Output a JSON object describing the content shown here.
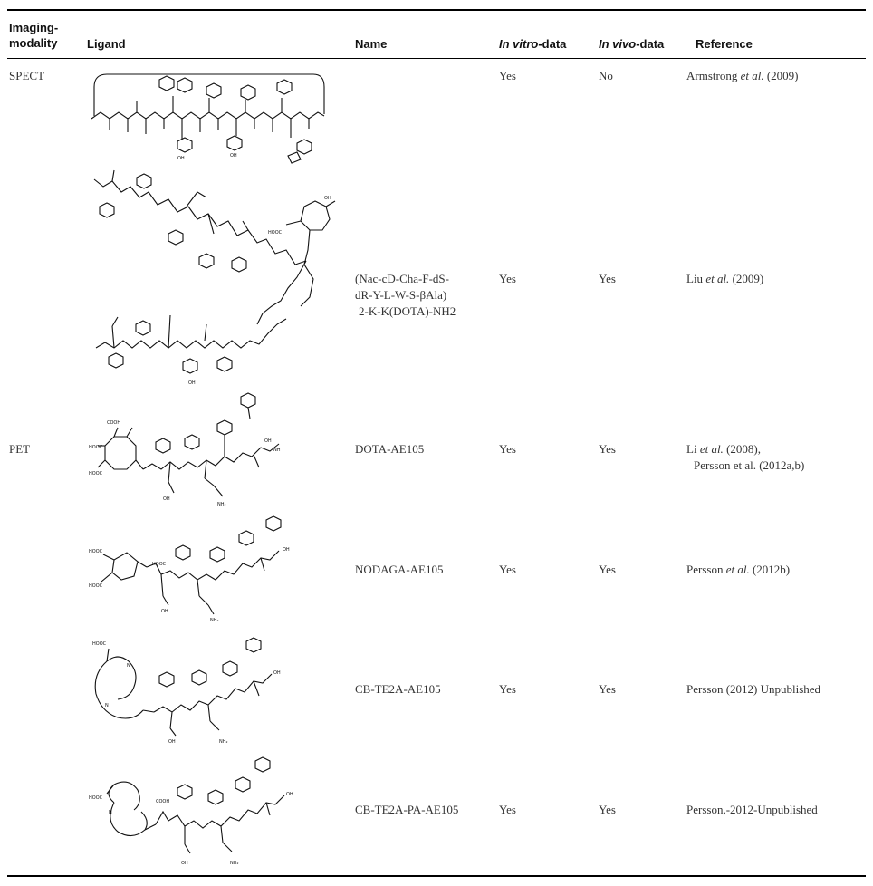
{
  "table": {
    "headers": {
      "modality_line1": "Imaging-",
      "modality_line2": "modality",
      "ligand": "Ligand",
      "name": "Name",
      "invitro_italic": "In vitro",
      "invitro_suffix": "-data",
      "invivo_italic": "In vivo",
      "invivo_suffix": "-data",
      "reference": "Reference"
    },
    "rows": [
      {
        "modality": "SPECT",
        "name_lines": [],
        "in_vitro": "Yes",
        "in_vivo": "No",
        "ref_a": "Armstrong ",
        "ref_b": "et al.",
        "ref_c": " (2009)",
        "ref_line2": ""
      },
      {
        "modality": "",
        "name_lines": [
          "(Nac-cD-Cha-F-dS-",
          "dR-Y-L-W-S-βAla)",
          "2-K-K(DOTA)-NH2"
        ],
        "in_vitro": "Yes",
        "in_vivo": "Yes",
        "ref_a": "Liu ",
        "ref_b": "et al.",
        "ref_c": " (2009)",
        "ref_line2": ""
      },
      {
        "modality": "PET",
        "name_lines": [
          "DOTA-AE105"
        ],
        "in_vitro": "Yes",
        "in_vivo": "Yes",
        "ref_a": "Li ",
        "ref_b": "et al.",
        "ref_c": " (2008),",
        "ref_line2": "Persson et al. (2012a,b)"
      },
      {
        "modality": "",
        "name_lines": [
          "NODAGA-AE105"
        ],
        "in_vitro": "Yes",
        "in_vivo": "Yes",
        "ref_a": "Persson ",
        "ref_b": "et al.",
        "ref_c": " (2012b)",
        "ref_line2": ""
      },
      {
        "modality": "",
        "name_lines": [
          "CB-TE2A-AE105"
        ],
        "in_vitro": "Yes",
        "in_vivo": "Yes",
        "ref_a": "Persson (2012) Unpublished",
        "ref_b": "",
        "ref_c": "",
        "ref_line2": ""
      },
      {
        "modality": "",
        "name_lines": [
          "CB-TE2A-PA-AE105"
        ],
        "in_vitro": "Yes",
        "in_vivo": "Yes",
        "ref_a": "Persson,-2012-Unpublished",
        "ref_b": "",
        "ref_c": "",
        "ref_line2": ""
      }
    ],
    "structure_labels": {
      "hooc": "HOOC",
      "cooh": "COOH",
      "oh": "OH",
      "nh": "NH",
      "nh2": "NH₂",
      "n": "N",
      "o": "O",
      "hn": "HN"
    }
  }
}
